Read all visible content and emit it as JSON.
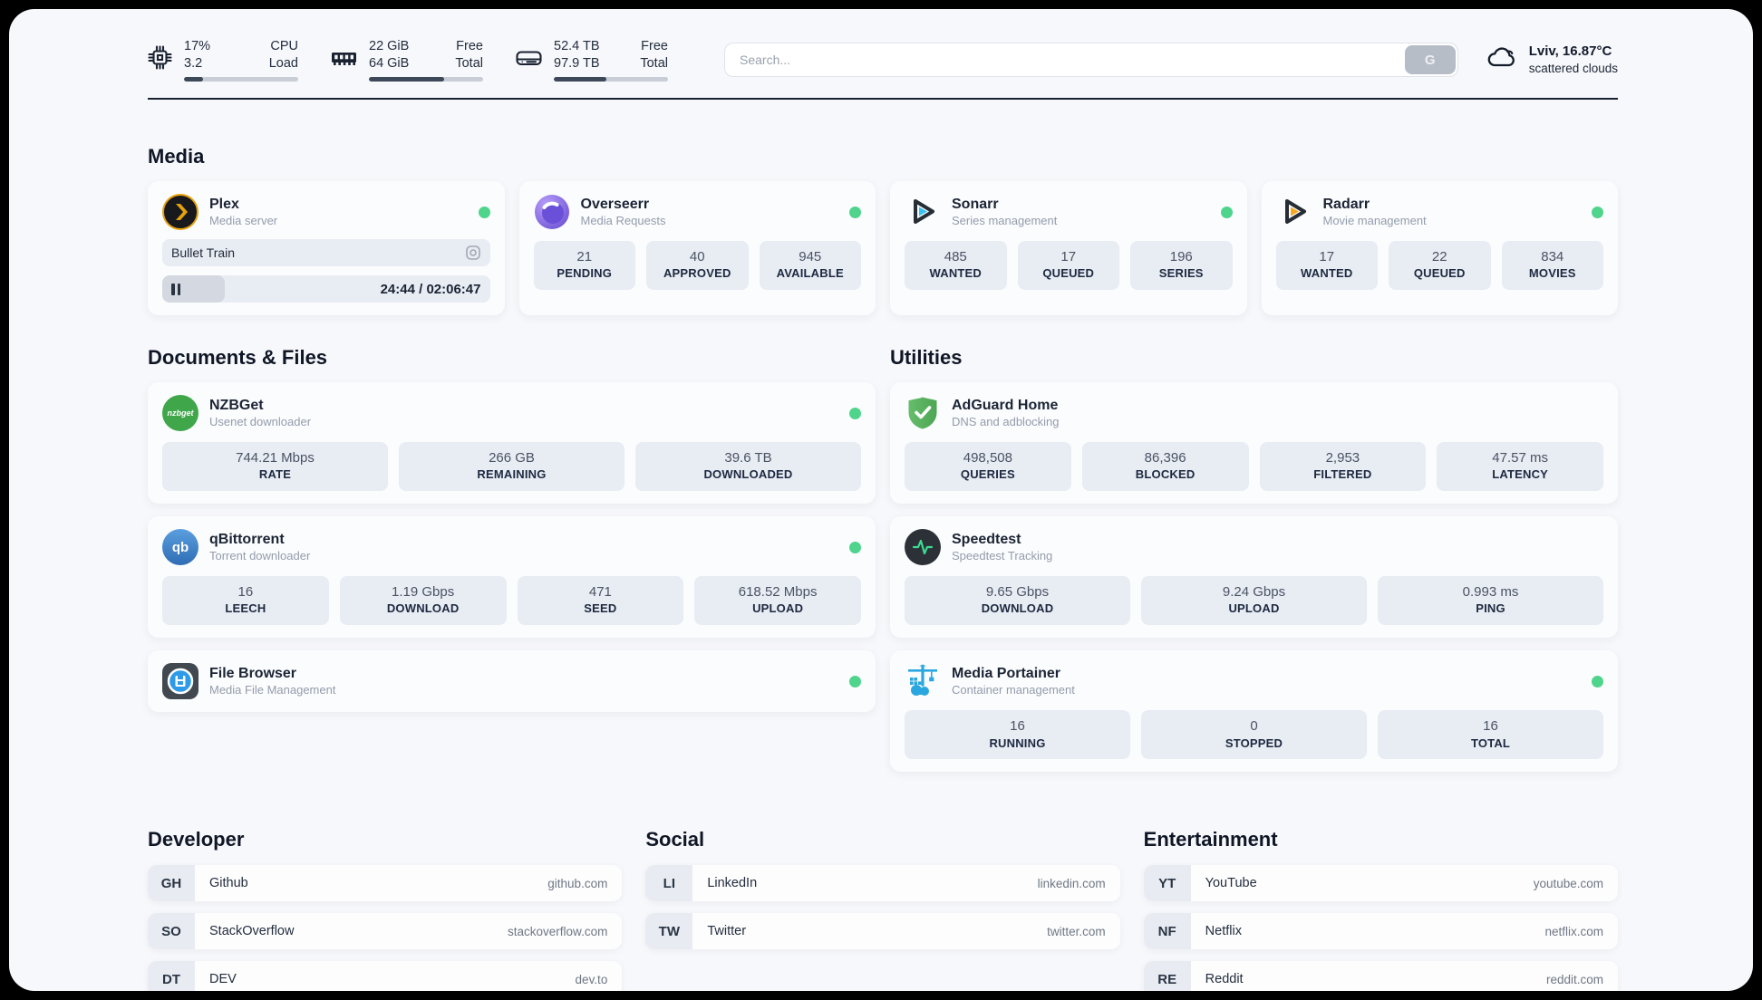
{
  "header": {
    "system": [
      {
        "icon": "cpu-icon",
        "values": [
          "17%",
          "3.2"
        ],
        "labels": [
          "CPU",
          "Load"
        ],
        "progress": 17
      },
      {
        "icon": "ram-icon",
        "values": [
          "22 GiB",
          "64 GiB"
        ],
        "labels": [
          "Free",
          "Total"
        ],
        "progress": 66
      },
      {
        "icon": "disk-icon",
        "values": [
          "52.4 TB",
          "97.9 TB"
        ],
        "labels": [
          "Free",
          "Total"
        ],
        "progress": 46
      }
    ],
    "search": {
      "placeholder": "Search...",
      "button_label": "G"
    },
    "weather": {
      "location": "Lviv, 16.87°C",
      "condition": "scattered clouds"
    }
  },
  "colors": {
    "status_online": "#4fd48c",
    "plex_amber": "#e5a00d",
    "sonarr_cyan": "#36c3f1",
    "radarr_amber": "#f7a823",
    "adguard_green": "#5cb863",
    "portainer_blue": "#2aa7de",
    "qbittorrent_blue": "#2e6db4",
    "nzbget_green": "#3fa64a",
    "speedtest_pulse": "#3ddc91"
  },
  "media": {
    "title": "Media",
    "plex": {
      "name": "Plex",
      "desc": "Media server",
      "status": "online",
      "now_playing": "Bullet Train",
      "time": "24:44 / 02:06:47",
      "progress": 19
    },
    "overseerr": {
      "name": "Overseerr",
      "desc": "Media Requests",
      "status": "online",
      "stats": [
        {
          "value": "21",
          "label": "PENDING"
        },
        {
          "value": "40",
          "label": "APPROVED"
        },
        {
          "value": "945",
          "label": "AVAILABLE"
        }
      ]
    },
    "sonarr": {
      "name": "Sonarr",
      "desc": "Series management",
      "status": "online",
      "stats": [
        {
          "value": "485",
          "label": "WANTED"
        },
        {
          "value": "17",
          "label": "QUEUED"
        },
        {
          "value": "196",
          "label": "SERIES"
        }
      ]
    },
    "radarr": {
      "name": "Radarr",
      "desc": "Movie management",
      "status": "online",
      "stats": [
        {
          "value": "17",
          "label": "WANTED"
        },
        {
          "value": "22",
          "label": "QUEUED"
        },
        {
          "value": "834",
          "label": "MOVIES"
        }
      ]
    }
  },
  "documents": {
    "title": "Documents & Files",
    "nzbget": {
      "name": "NZBGet",
      "desc": "Usenet downloader",
      "status": "online",
      "icon_text": "nzbget",
      "stats": [
        {
          "value": "744.21 Mbps",
          "label": "RATE"
        },
        {
          "value": "266 GB",
          "label": "REMAINING"
        },
        {
          "value": "39.6 TB",
          "label": "DOWNLOADED"
        }
      ]
    },
    "qbittorrent": {
      "name": "qBittorrent",
      "desc": "Torrent downloader",
      "status": "online",
      "icon_text": "qb",
      "stats": [
        {
          "value": "16",
          "label": "LEECH"
        },
        {
          "value": "1.19 Gbps",
          "label": "DOWNLOAD"
        },
        {
          "value": "471",
          "label": "SEED"
        },
        {
          "value": "618.52 Mbps",
          "label": "UPLOAD"
        }
      ]
    },
    "filebrowser": {
      "name": "File Browser",
      "desc": "Media File Management",
      "status": "online"
    }
  },
  "utilities": {
    "title": "Utilities",
    "adguard": {
      "name": "AdGuard Home",
      "desc": "DNS and adblocking",
      "stats": [
        {
          "value": "498,508",
          "label": "QUERIES"
        },
        {
          "value": "86,396",
          "label": "BLOCKED"
        },
        {
          "value": "2,953",
          "label": "FILTERED"
        },
        {
          "value": "47.57 ms",
          "label": "LATENCY"
        }
      ]
    },
    "speedtest": {
      "name": "Speedtest",
      "desc": "Speedtest Tracking",
      "stats": [
        {
          "value": "9.65 Gbps",
          "label": "DOWNLOAD"
        },
        {
          "value": "9.24 Gbps",
          "label": "UPLOAD"
        },
        {
          "value": "0.993 ms",
          "label": "PING"
        }
      ]
    },
    "portainer": {
      "name": "Media Portainer",
      "desc": "Container management",
      "status": "online",
      "stats": [
        {
          "value": "16",
          "label": "RUNNING"
        },
        {
          "value": "0",
          "label": "STOPPED"
        },
        {
          "value": "16",
          "label": "TOTAL"
        }
      ]
    }
  },
  "bookmarks": [
    {
      "title": "Developer",
      "links": [
        {
          "abbr": "GH",
          "name": "Github",
          "url": "github.com"
        },
        {
          "abbr": "SO",
          "name": "StackOverflow",
          "url": "stackoverflow.com"
        },
        {
          "abbr": "DT",
          "name": "DEV",
          "url": "dev.to"
        }
      ]
    },
    {
      "title": "Social",
      "links": [
        {
          "abbr": "LI",
          "name": "LinkedIn",
          "url": "linkedin.com"
        },
        {
          "abbr": "TW",
          "name": "Twitter",
          "url": "twitter.com"
        }
      ]
    },
    {
      "title": "Entertainment",
      "links": [
        {
          "abbr": "YT",
          "name": "YouTube",
          "url": "youtube.com"
        },
        {
          "abbr": "NF",
          "name": "Netflix",
          "url": "netflix.com"
        },
        {
          "abbr": "RE",
          "name": "Reddit",
          "url": "reddit.com"
        }
      ]
    }
  ]
}
